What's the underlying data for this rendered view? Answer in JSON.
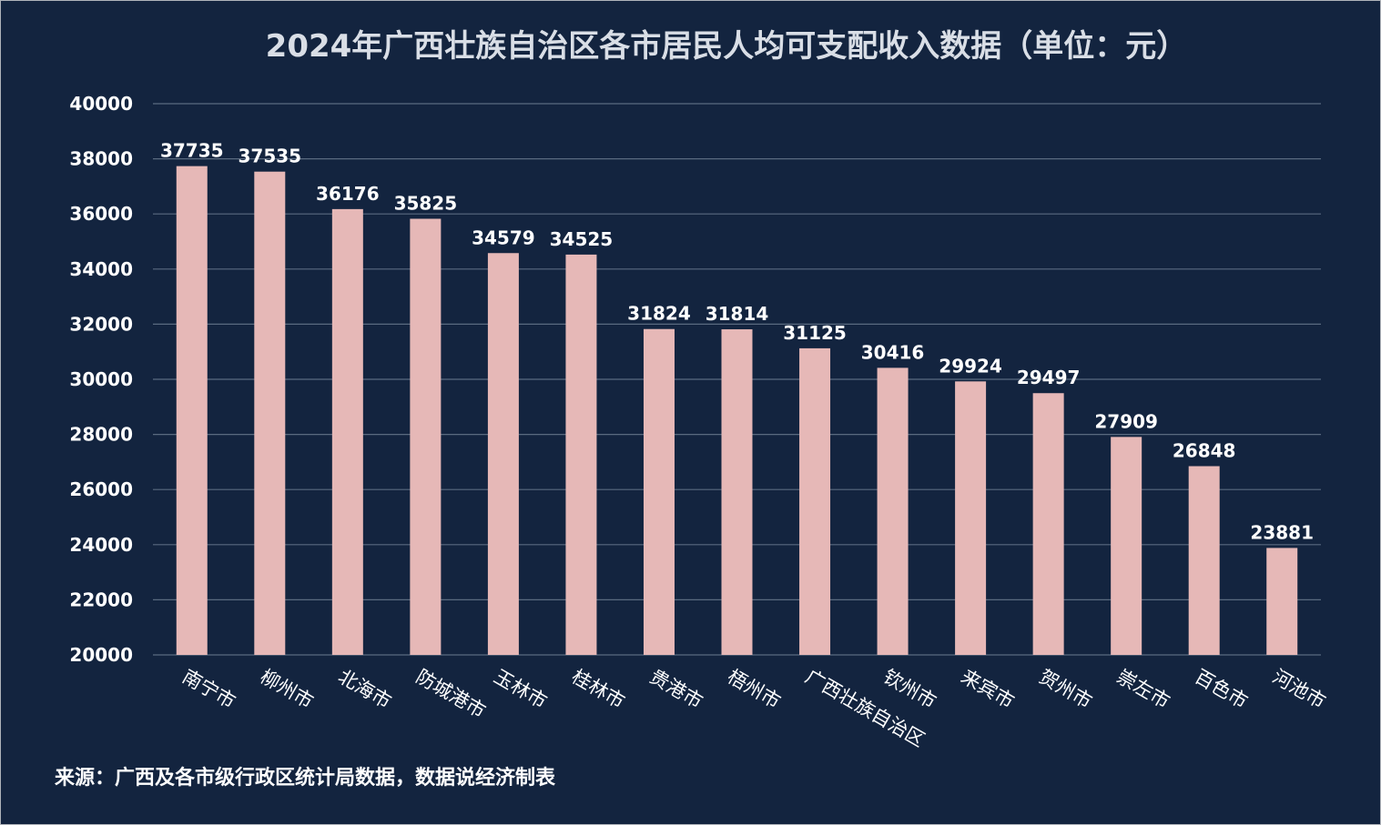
{
  "chart_data": {
    "type": "bar",
    "title": "2024年广西壮族自治区各市居民人均可支配收入数据（单位：元）",
    "categories": [
      "南宁市",
      "柳州市",
      "北海市",
      "防城港市",
      "玉林市",
      "桂林市",
      "贵港市",
      "梧州市",
      "广西壮族自治区",
      "钦州市",
      "来宾市",
      "贺州市",
      "崇左市",
      "百色市",
      "河池市"
    ],
    "values": [
      37735,
      37535,
      36176,
      35825,
      34579,
      34525,
      31824,
      31814,
      31125,
      30416,
      29924,
      29497,
      27909,
      26848,
      23881
    ],
    "ylim": [
      20000,
      40000
    ],
    "yticks": [
      "20000",
      "22000",
      "24000",
      "26000",
      "28000",
      "30000",
      "32000",
      "34000",
      "36000",
      "38000",
      "40000"
    ],
    "grid": true,
    "xlabel": "",
    "ylabel": ""
  },
  "source_note": "来源：广西及各市级行政区统计局数据，数据说经济制表",
  "colors": {
    "background": "#13243f",
    "bar": "#e6b8b7",
    "grid": "#5a6a80",
    "text": "#ffffff",
    "frame_border": "#b0b4ba"
  }
}
